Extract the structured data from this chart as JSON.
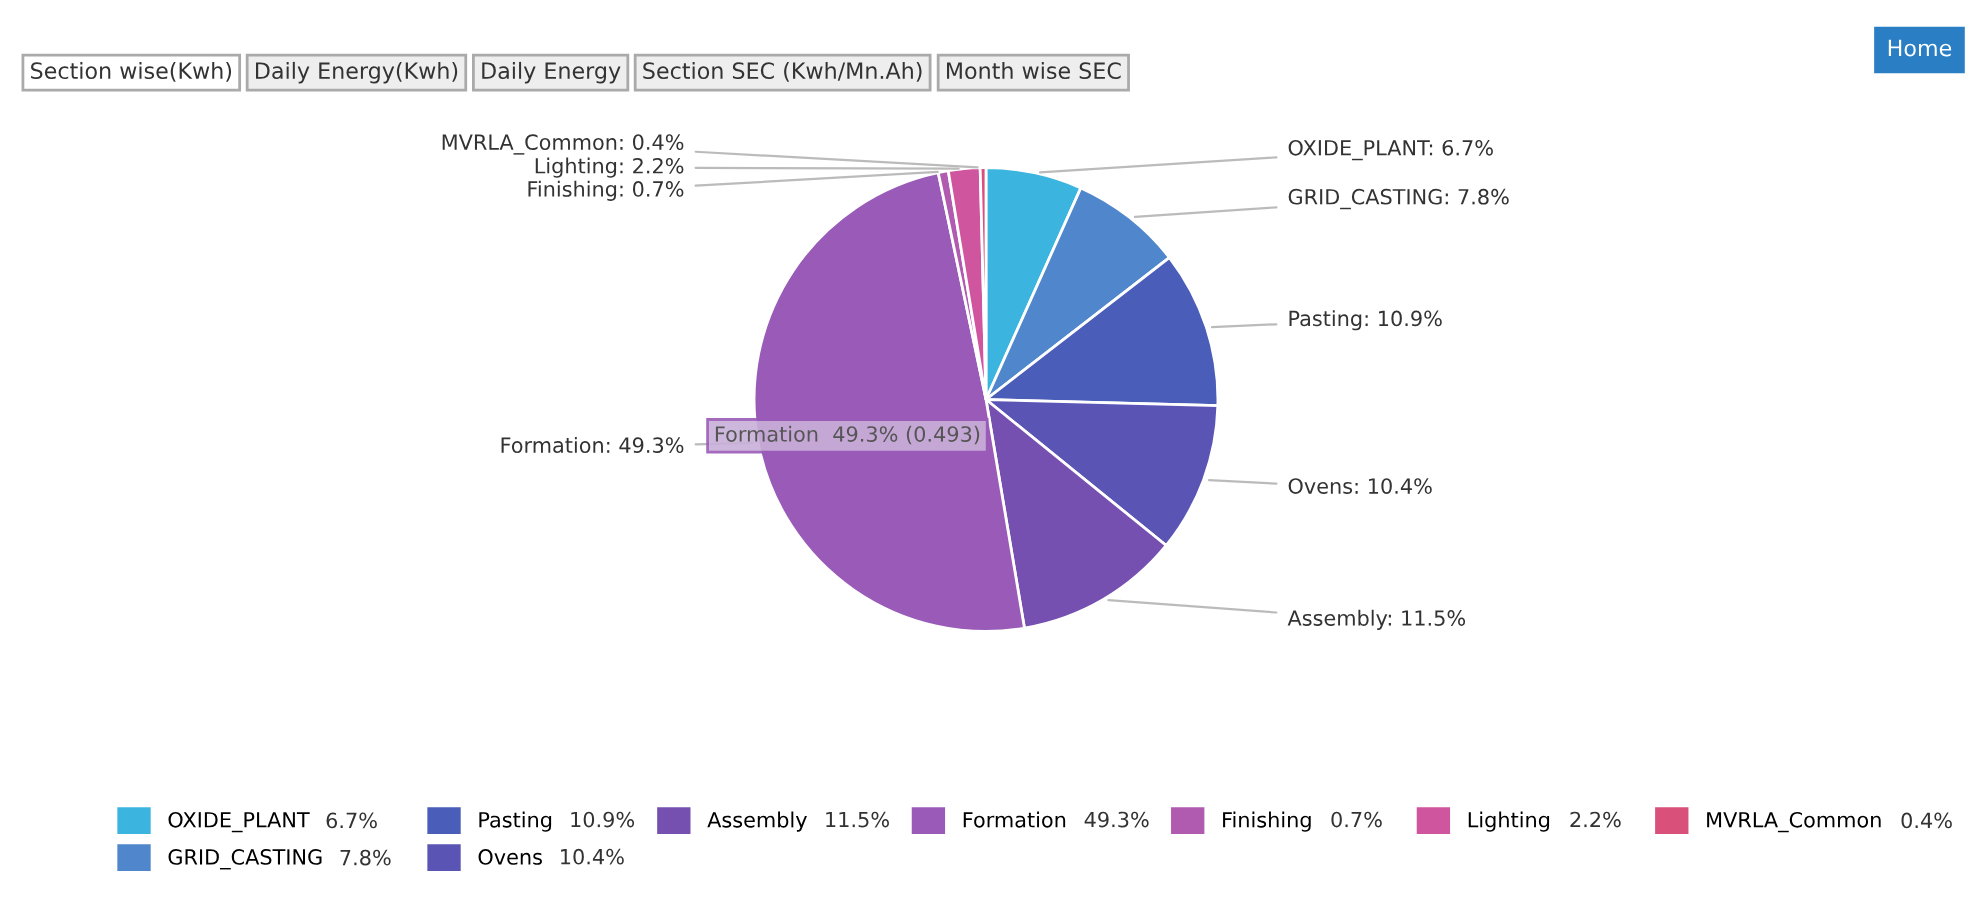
{
  "chart_data": {
    "type": "pie",
    "categories": [
      "OXIDE_PLANT",
      "GRID_CASTING",
      "Pasting",
      "Ovens",
      "Assembly",
      "Formation",
      "Finishing",
      "Lighting",
      "MVRLA_Common"
    ],
    "values": [
      6.7,
      7.8,
      10.9,
      10.4,
      11.5,
      49.3,
      0.7,
      2.2,
      0.4
    ],
    "colors": [
      "#3bb4e0",
      "#4f86cc",
      "#4a5db8",
      "#5a55b5",
      "#7650b0",
      "#9a5ab8",
      "#b05ab0",
      "#d0559f",
      "#d9507a"
    ],
    "value_labels": [
      "OXIDE_PLANT: 6.7%",
      "GRID_CASTING: 7.8%",
      "Pasting: 10.9%",
      "Ovens: 10.4%",
      "Assembly: 11.5%",
      "Formation: 49.3%",
      "Finishing: 0.7%",
      "Lighting: 2.2%",
      "MVRLA_Common: 0.4%"
    ],
    "legend": "bottom",
    "annotations": [
      "Section wise(Kwh)",
      "Daily Energy(Kwh)",
      "Daily Energy",
      "Section SEC (Kwh/Mn.Ah)",
      "Month wise SEC",
      "Home",
      "Formation  49.3% (0.493)",
      "6.7%",
      "7.8%",
      "10.9%",
      "10.4%",
      "11.5%",
      "49.3%",
      "0.7%",
      "2.2%",
      "0.4%"
    ]
  }
}
